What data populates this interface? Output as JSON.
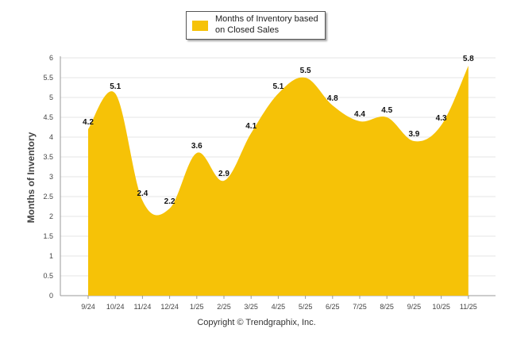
{
  "chart_data": {
    "type": "area",
    "title": "",
    "xlabel": "",
    "ylabel": "Months of Inventory",
    "categories": [
      "9/24",
      "10/24",
      "11/24",
      "12/24",
      "1/25",
      "2/25",
      "3/25",
      "4/25",
      "5/25",
      "6/25",
      "7/25",
      "8/25",
      "9/25",
      "10/25",
      "11/25"
    ],
    "series": [
      {
        "name": "Months of Inventory based on Closed Sales",
        "values": [
          4.2,
          5.1,
          2.4,
          2.2,
          3.6,
          2.9,
          4.1,
          5.1,
          5.5,
          4.8,
          4.4,
          4.5,
          3.9,
          4.3,
          5.8
        ]
      }
    ],
    "ylim": [
      0,
      6
    ],
    "yticks": [
      "0",
      "0.5",
      "1",
      "1.5",
      "2",
      "2.5",
      "3",
      "3.5",
      "4",
      "4.5",
      "5",
      "5.5",
      "6"
    ],
    "grid": true,
    "legend_position": "top-center",
    "color": "#f6c207"
  },
  "legend": {
    "label": "Months of Inventory based on Closed Sales"
  },
  "footer": {
    "copyright": "Copyright © Trendgraphix, Inc."
  }
}
